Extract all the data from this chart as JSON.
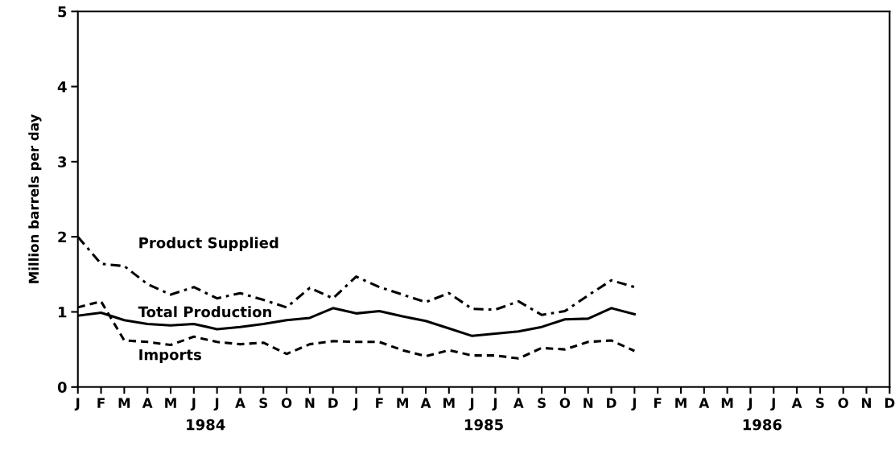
{
  "chart_data": {
    "type": "line",
    "ylabel": "Million barrels per day",
    "categories": [
      "J",
      "F",
      "M",
      "A",
      "M",
      "J",
      "J",
      "A",
      "S",
      "O",
      "N",
      "D",
      "J",
      "F",
      "M",
      "A",
      "M",
      "J",
      "J",
      "A",
      "S",
      "O",
      "N",
      "D",
      "J",
      "F",
      "M",
      "A",
      "M",
      "J",
      "J",
      "A",
      "S",
      "O",
      "N",
      "D"
    ],
    "series": [
      {
        "name": "Product Supplied",
        "color": "#000000",
        "line_style": "dashdot",
        "values": [
          2.0,
          1.64,
          1.61,
          1.37,
          1.23,
          1.33,
          1.18,
          1.25,
          1.16,
          1.06,
          1.32,
          1.18,
          1.47,
          1.33,
          1.23,
          1.13,
          1.25,
          1.04,
          1.03,
          1.14,
          0.96,
          1.01,
          1.22,
          1.42,
          1.33,
          null,
          null,
          null,
          null,
          null,
          null,
          null,
          null,
          null,
          null,
          null
        ]
      },
      {
        "name": "Total Production",
        "color": "#000000",
        "line_style": "solid",
        "values": [
          0.95,
          0.99,
          0.89,
          0.84,
          0.82,
          0.84,
          0.77,
          0.8,
          0.84,
          0.89,
          0.92,
          1.05,
          0.98,
          1.01,
          0.94,
          0.88,
          0.78,
          0.68,
          0.71,
          0.74,
          0.8,
          0.9,
          0.91,
          1.05,
          0.97,
          null,
          null,
          null,
          null,
          null,
          null,
          null,
          null,
          null,
          null,
          null
        ]
      },
      {
        "name": "Imports",
        "color": "#000000",
        "line_style": "dashed",
        "values": [
          1.06,
          1.14,
          0.62,
          0.6,
          0.56,
          0.67,
          0.6,
          0.57,
          0.59,
          0.44,
          0.57,
          0.61,
          0.6,
          0.6,
          0.49,
          0.41,
          0.49,
          0.42,
          0.42,
          0.38,
          0.52,
          0.5,
          0.6,
          0.62,
          0.48,
          null,
          null,
          null,
          null,
          null,
          null,
          null,
          null,
          null,
          null,
          null
        ]
      }
    ],
    "ylim": [
      0,
      5
    ],
    "yticks": [
      0,
      1,
      2,
      3,
      4,
      5
    ],
    "grid": false,
    "legend": false,
    "annotations": [
      "1984",
      "1985",
      "1986"
    ]
  }
}
